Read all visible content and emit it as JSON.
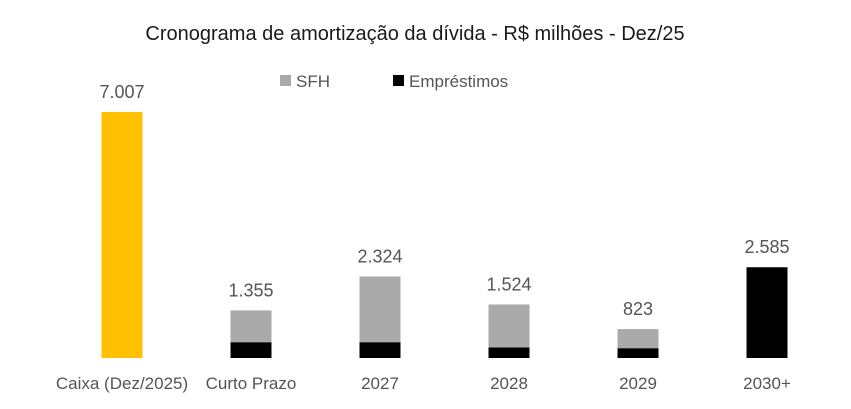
{
  "chart_data": {
    "type": "bar",
    "title": "Cronograma de amortização da dívida - R$ milhões - Dez/25",
    "categories": [
      "Caixa (Dez/2025)",
      "Curto Prazo",
      "2027",
      "2028",
      "2029",
      "2030+"
    ],
    "cash": {
      "category": "Caixa (Dez/2025)",
      "value": 7007,
      "label": "7.007",
      "color": "#FFC000"
    },
    "series": [
      {
        "name": "Empréstimos",
        "color": "#000000",
        "values": [
          null,
          450,
          450,
          300,
          280,
          2585
        ]
      },
      {
        "name": "SFH",
        "color": "#AAAAAA",
        "values": [
          null,
          905,
          1874,
          1224,
          543,
          0
        ]
      }
    ],
    "totals": [
      7007,
      1355,
      2324,
      1524,
      823,
      2585
    ],
    "total_labels": [
      "7.007",
      "1.355",
      "2.324",
      "1.524",
      "823",
      "2.585"
    ],
    "legend": [
      "SFH",
      "Empréstimos"
    ],
    "legend_position": "top",
    "ylim": [
      0,
      7007
    ],
    "grid": false,
    "xlabel": "",
    "ylabel": ""
  }
}
